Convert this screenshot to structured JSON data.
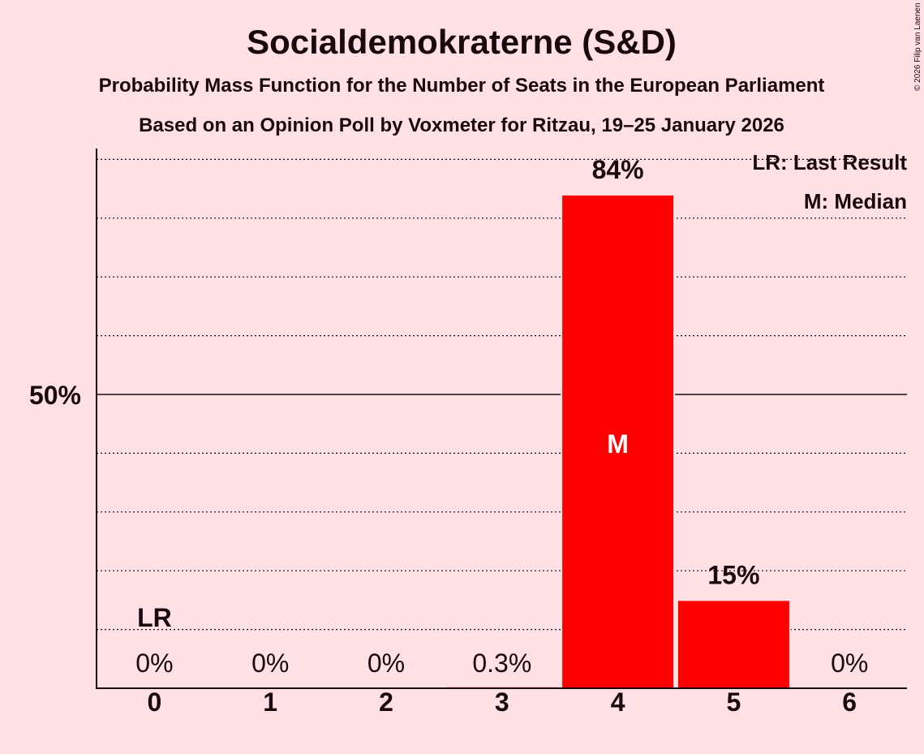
{
  "copyright": "© 2026 Filip van Laenen",
  "chart_data": {
    "type": "bar",
    "title": "Socialdemokraterne (S&D)",
    "subtitle": "Probability Mass Function for the Number of Seats in the European Parliament",
    "subtitle2": "Based on an Opinion Poll by Voxmeter for Ritzau, 19–25 January 2026",
    "categories": [
      "0",
      "1",
      "2",
      "3",
      "4",
      "5",
      "6"
    ],
    "values": [
      0,
      0,
      0,
      0.3,
      84,
      15,
      0
    ],
    "labels": [
      "0%",
      "0%",
      "0%",
      "0.3%",
      "84%",
      "15%",
      "0%"
    ],
    "ylim": [
      0,
      100
    ],
    "ytick_label": "50%",
    "ytick_value": 50,
    "grid_step": 10,
    "last_result_index": 0,
    "last_result_label": "LR",
    "median_index": 4,
    "median_label": "M",
    "legend": [
      "LR: Last Result",
      "M: Median"
    ],
    "legend_position": "top-right",
    "bar_color": "#ff0000"
  }
}
